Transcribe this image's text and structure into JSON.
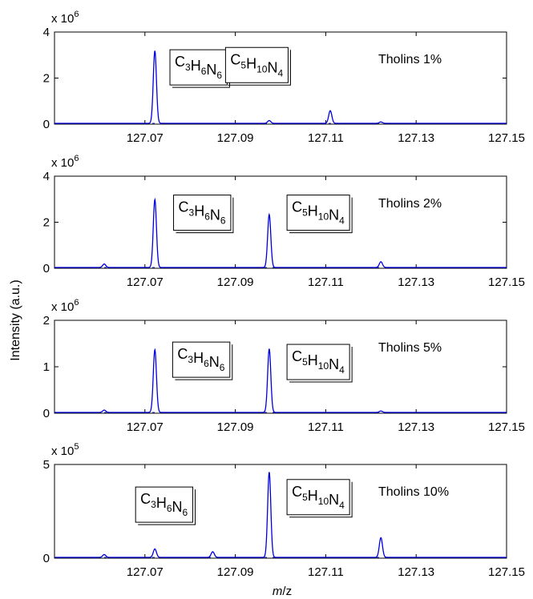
{
  "chart_data": {
    "type": "line",
    "shared_x_axis": {
      "label_italic": "m",
      "label_rest": "/z",
      "ticks": [
        "127.07",
        "127.09",
        "127.11",
        "127.13",
        "127.15"
      ],
      "tick_values": [
        127.07,
        127.09,
        127.11,
        127.13,
        127.15
      ],
      "range": [
        127.05,
        127.15
      ]
    },
    "shared_y_label": "Intensity (a.u.)",
    "line_color": "#0000e0",
    "panels": [
      {
        "label": "Tholins 1%",
        "exponent_base": "x 10",
        "exponent_power": "6",
        "ylim": [
          0,
          4
        ],
        "y_ticks": [
          "0",
          "2",
          "4"
        ],
        "y_tick_values": [
          0,
          2,
          4
        ],
        "peaks": [
          {
            "x": 127.0722,
            "y": 3.15
          },
          {
            "x": 127.0975,
            "y": 0.12
          },
          {
            "x": 127.111,
            "y": 0.55
          },
          {
            "x": 127.1222,
            "y": 0.06
          }
        ],
        "labels": [
          {
            "base": [
              "C",
              "H",
              "N"
            ],
            "subs": [
              "3",
              "6",
              "6"
            ],
            "x": 127.0766,
            "y": 2.5
          },
          {
            "base": [
              "C",
              "H",
              "N"
            ],
            "subs": [
              "5",
              "10",
              "4"
            ],
            "x": 127.0889,
            "y": 2.6
          }
        ]
      },
      {
        "label": "Tholins 2%",
        "exponent_base": "x 10",
        "exponent_power": "6",
        "ylim": [
          0,
          4
        ],
        "y_ticks": [
          "0",
          "2",
          "4"
        ],
        "y_tick_values": [
          0,
          2,
          4
        ],
        "peaks": [
          {
            "x": 127.061,
            "y": 0.15
          },
          {
            "x": 127.0722,
            "y": 2.95
          },
          {
            "x": 127.0975,
            "y": 2.3
          },
          {
            "x": 127.1222,
            "y": 0.25
          }
        ],
        "labels": [
          {
            "base": [
              "C",
              "H",
              "N"
            ],
            "subs": [
              "3",
              "6",
              "6"
            ],
            "x": 127.0774,
            "y": 2.45
          },
          {
            "base": [
              "C",
              "H",
              "N"
            ],
            "subs": [
              "5",
              "10",
              "4"
            ],
            "x": 127.1025,
            "y": 2.45
          }
        ]
      },
      {
        "label": "Tholins 5%",
        "exponent_base": "x 10",
        "exponent_power": "6",
        "ylim": [
          0,
          2
        ],
        "y_ticks": [
          "0",
          "1",
          "2"
        ],
        "y_tick_values": [
          0,
          1,
          2
        ],
        "peaks": [
          {
            "x": 127.061,
            "y": 0.05
          },
          {
            "x": 127.0722,
            "y": 1.35
          },
          {
            "x": 127.0975,
            "y": 1.37
          },
          {
            "x": 127.1222,
            "y": 0.03
          }
        ],
        "labels": [
          {
            "base": [
              "C",
              "H",
              "N"
            ],
            "subs": [
              "3",
              "6",
              "6"
            ],
            "x": 127.0772,
            "y": 1.17
          },
          {
            "base": [
              "C",
              "H",
              "N"
            ],
            "subs": [
              "5",
              "10",
              "4"
            ],
            "x": 127.1025,
            "y": 1.12
          }
        ]
      },
      {
        "label": "Tholins 10%",
        "exponent_base": "x 10",
        "exponent_power": "5",
        "ylim": [
          0,
          5
        ],
        "y_ticks": [
          "0",
          "5"
        ],
        "y_tick_values": [
          0,
          5
        ],
        "peaks": [
          {
            "x": 127.061,
            "y": 0.15
          },
          {
            "x": 127.0722,
            "y": 0.45
          },
          {
            "x": 127.085,
            "y": 0.3
          },
          {
            "x": 127.0975,
            "y": 4.55
          },
          {
            "x": 127.1222,
            "y": 1.05
          }
        ],
        "labels": [
          {
            "base": [
              "C",
              "H",
              "N"
            ],
            "subs": [
              "3",
              "6",
              "6"
            ],
            "x": 127.069,
            "y": 2.9
          },
          {
            "base": [
              "C",
              "H",
              "N"
            ],
            "subs": [
              "5",
              "10",
              "4"
            ],
            "x": 127.1025,
            "y": 3.3
          }
        ]
      }
    ]
  }
}
